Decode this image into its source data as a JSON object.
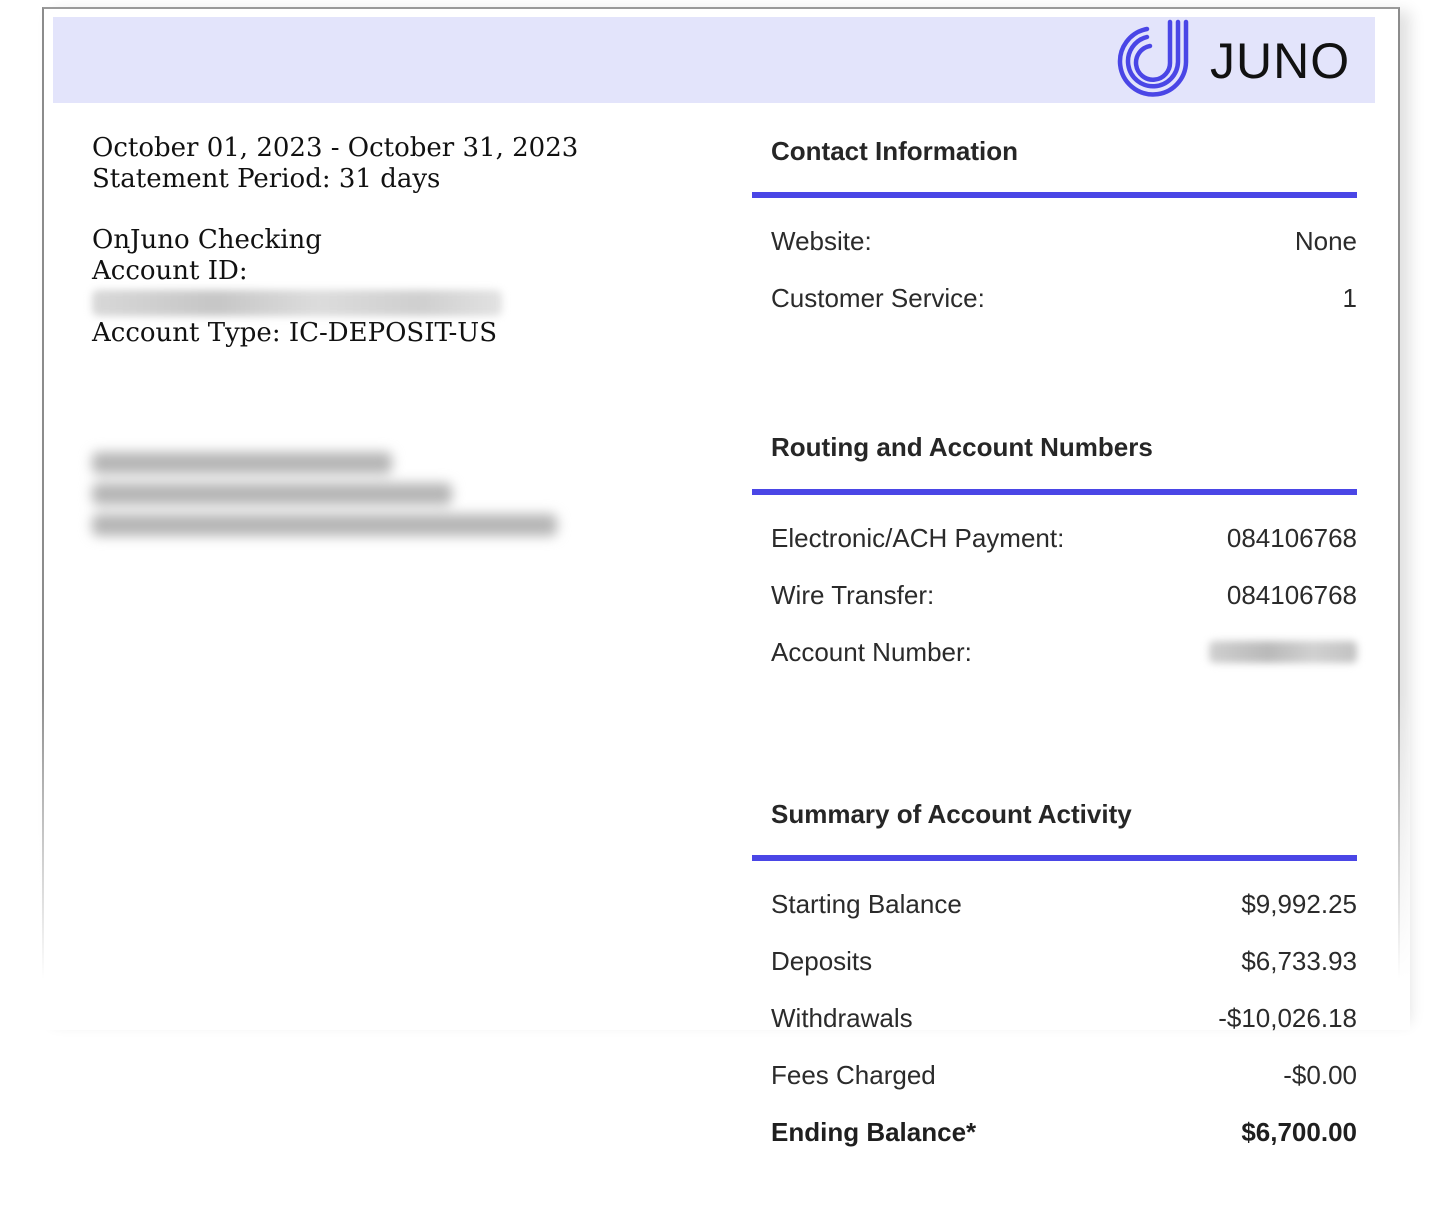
{
  "brand": {
    "name": "JUNO",
    "logo_color": "#4a46e6",
    "band_color": "#e3e4fb"
  },
  "statement": {
    "date_range": "October 01, 2023 - October 31, 2023",
    "period": "Statement Period: 31 days"
  },
  "account": {
    "product": "OnJuno Checking",
    "id_label": "Account ID:",
    "type": "Account Type: IC-DEPOSIT-US"
  },
  "contact": {
    "title": "Contact Information",
    "rows": [
      {
        "label": "Website:",
        "value": "None"
      },
      {
        "label": "Customer Service:",
        "value": "1"
      }
    ]
  },
  "routing": {
    "title": "Routing and Account Numbers",
    "rows": [
      {
        "label": "Electronic/ACH Payment:",
        "value": "084106768"
      },
      {
        "label": "Wire Transfer:",
        "value": "084106768"
      },
      {
        "label": "Account Number:"
      }
    ]
  },
  "summary": {
    "title": "Summary of Account Activity",
    "rows": [
      {
        "label": "Starting Balance",
        "value": "$9,992.25"
      },
      {
        "label": "Deposits",
        "value": "$6,733.93"
      },
      {
        "label": "Withdrawals",
        "value": "-$10,026.18"
      },
      {
        "label": "Fees Charged",
        "value": "-$0.00"
      },
      {
        "label": "Ending Balance*",
        "value": "$6,700.00"
      }
    ]
  }
}
